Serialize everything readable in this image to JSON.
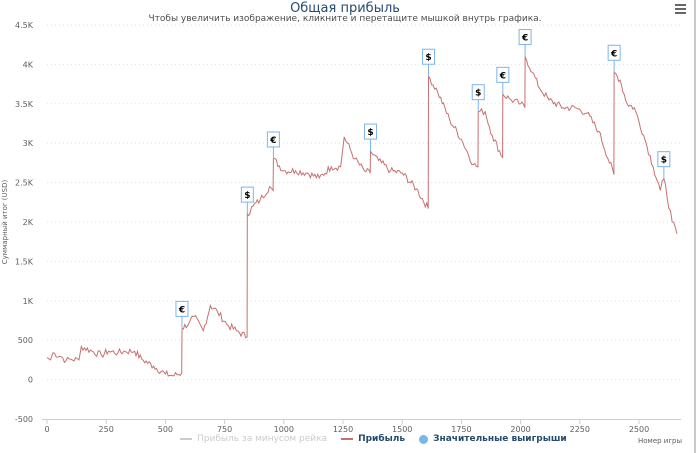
{
  "header": {
    "title": "Общая прибыль",
    "subtitle": "Чтобы увеличить изображение, кликните и перетащите мышкой внутрь графика.",
    "menu_icon": "hamburger-icon"
  },
  "chart_data": {
    "type": "line",
    "title": "Общая прибыль",
    "xlabel": "Номер игры",
    "ylabel": "Суммарный итог (USD)",
    "xlim": [
      0,
      2650
    ],
    "ylim": [
      -500,
      4500
    ],
    "x_ticks": [
      "0",
      "250",
      "500",
      "750",
      "1000",
      "1250",
      "1500",
      "1750",
      "2000",
      "2250",
      "2500"
    ],
    "x_tick_values": [
      0,
      250,
      500,
      750,
      1000,
      1250,
      1500,
      1750,
      2000,
      2250,
      2500
    ],
    "y_ticks": [
      "-500",
      "0",
      "500",
      "1K",
      "1.5K",
      "2K",
      "2.5K",
      "3K",
      "3.5K",
      "4K",
      "4.5K"
    ],
    "y_tick_values": [
      -500,
      0,
      500,
      1000,
      1500,
      2000,
      2500,
      3000,
      3500,
      4000,
      4500
    ],
    "grid": true,
    "legend_position": "bottom",
    "legend": [
      {
        "label": "Прибыль за минусом рейка",
        "color": "#cccccc",
        "hidden": true
      },
      {
        "label": "Прибыль",
        "color": "#c87070"
      },
      {
        "label": "Значительные выигрыши",
        "color": "#7cb5ec"
      }
    ],
    "series": [
      {
        "name": "Прибыль",
        "points": [
          [
            0,
            280
          ],
          [
            15,
            250
          ],
          [
            25,
            340
          ],
          [
            60,
            290
          ],
          [
            80,
            240
          ],
          [
            100,
            260
          ],
          [
            135,
            250
          ],
          [
            145,
            420
          ],
          [
            190,
            360
          ],
          [
            230,
            310
          ],
          [
            260,
            360
          ],
          [
            300,
            340
          ],
          [
            330,
            360
          ],
          [
            370,
            360
          ],
          [
            400,
            260
          ],
          [
            450,
            170
          ],
          [
            500,
            70
          ],
          [
            530,
            50
          ],
          [
            569,
            80
          ],
          [
            570,
            650
          ],
          [
            600,
            720
          ],
          [
            620,
            800
          ],
          [
            660,
            620
          ],
          [
            690,
            940
          ],
          [
            720,
            860
          ],
          [
            760,
            700
          ],
          [
            800,
            620
          ],
          [
            845,
            540
          ],
          [
            846,
            2100
          ],
          [
            870,
            2200
          ],
          [
            900,
            2280
          ],
          [
            940,
            2450
          ],
          [
            955,
            2400
          ],
          [
            956,
            2800
          ],
          [
            1000,
            2650
          ],
          [
            1050,
            2650
          ],
          [
            1100,
            2620
          ],
          [
            1150,
            2560
          ],
          [
            1200,
            2700
          ],
          [
            1240,
            2700
          ],
          [
            1255,
            3080
          ],
          [
            1300,
            2800
          ],
          [
            1340,
            2650
          ],
          [
            1365,
            2620
          ],
          [
            1366,
            2900
          ],
          [
            1400,
            2780
          ],
          [
            1450,
            2650
          ],
          [
            1500,
            2620
          ],
          [
            1560,
            2420
          ],
          [
            1610,
            2170
          ],
          [
            1611,
            3850
          ],
          [
            1650,
            3650
          ],
          [
            1700,
            3300
          ],
          [
            1750,
            3050
          ],
          [
            1800,
            2730
          ],
          [
            1820,
            2700
          ],
          [
            1821,
            3400
          ],
          [
            1850,
            3400
          ],
          [
            1880,
            3100
          ],
          [
            1924,
            2820
          ],
          [
            1925,
            3620
          ],
          [
            1960,
            3550
          ],
          [
            2000,
            3500
          ],
          [
            2018,
            3450
          ],
          [
            2019,
            4100
          ],
          [
            2050,
            3900
          ],
          [
            2080,
            3700
          ],
          [
            2120,
            3550
          ],
          [
            2180,
            3450
          ],
          [
            2230,
            3450
          ],
          [
            2280,
            3380
          ],
          [
            2330,
            3150
          ],
          [
            2394,
            2600
          ],
          [
            2395,
            3900
          ],
          [
            2420,
            3800
          ],
          [
            2450,
            3500
          ],
          [
            2480,
            3450
          ],
          [
            2520,
            3100
          ],
          [
            2560,
            2700
          ],
          [
            2590,
            2400
          ],
          [
            2605,
            2550
          ],
          [
            2640,
            2000
          ],
          [
            2660,
            1850
          ]
        ]
      }
    ],
    "flags": [
      {
        "x": 570,
        "y": 650,
        "label": "€"
      },
      {
        "x": 846,
        "y": 2100,
        "label": "$"
      },
      {
        "x": 956,
        "y": 2800,
        "label": "€"
      },
      {
        "x": 1366,
        "y": 2900,
        "label": "$"
      },
      {
        "x": 1611,
        "y": 3850,
        "label": "$"
      },
      {
        "x": 1821,
        "y": 3400,
        "label": "$"
      },
      {
        "x": 1925,
        "y": 3620,
        "label": "€"
      },
      {
        "x": 2019,
        "y": 4100,
        "label": "€"
      },
      {
        "x": 2395,
        "y": 3900,
        "label": "€"
      },
      {
        "x": 2605,
        "y": 2550,
        "label": "$"
      }
    ]
  }
}
